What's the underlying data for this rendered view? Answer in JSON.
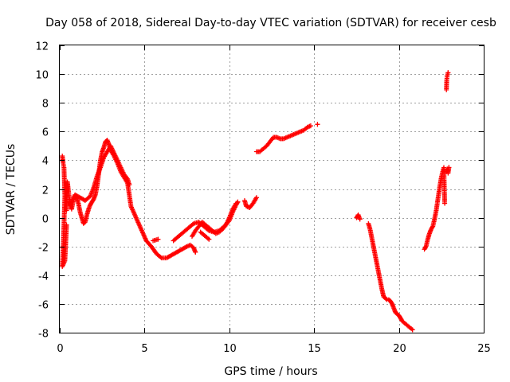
{
  "chart_data": {
    "type": "scatter",
    "title": "Day 058 of 2018, Sidereal Day-to-day VTEC variation (SDTVAR) for receiver cesb",
    "xlabel": "GPS time / hours",
    "ylabel": "SDTVAR / TECUs",
    "xlim": [
      0,
      25
    ],
    "ylim": [
      -8,
      12
    ],
    "xticks": [
      "0",
      "5",
      "10",
      "15",
      "20",
      "25"
    ],
    "yticks": [
      "-8",
      "-6",
      "-4",
      "-2",
      "0",
      "2",
      "4",
      "6",
      "8",
      "10",
      "12"
    ],
    "grid": true,
    "marker": "plus",
    "color": "#ff0000",
    "series": [
      {
        "name": "SDTVAR",
        "segments": [
          [
            [
              0.15,
              4.3
            ],
            [
              0.2,
              3.8
            ],
            [
              0.25,
              3.5
            ],
            [
              0.3,
              1.5
            ],
            [
              0.25,
              -0.5
            ],
            [
              0.2,
              -2.0
            ],
            [
              0.15,
              -3.4
            ],
            [
              0.3,
              -3.0
            ],
            [
              0.35,
              -1.8
            ],
            [
              0.4,
              -0.5
            ]
          ],
          [
            [
              0.4,
              0.5
            ],
            [
              0.45,
              2.5
            ],
            [
              0.5,
              2.0
            ],
            [
              0.6,
              1.0
            ],
            [
              0.7,
              0.6
            ],
            [
              0.8,
              1.2
            ],
            [
              0.9,
              1.5
            ],
            [
              1.0,
              1.4
            ],
            [
              1.1,
              1.0
            ],
            [
              1.2,
              0.4
            ],
            [
              1.3,
              0.0
            ],
            [
              1.4,
              -0.4
            ],
            [
              1.5,
              -0.3
            ],
            [
              1.6,
              0.2
            ],
            [
              1.7,
              0.6
            ],
            [
              1.8,
              0.9
            ],
            [
              1.9,
              1.1
            ],
            [
              2.0,
              1.3
            ],
            [
              2.1,
              1.6
            ],
            [
              2.2,
              2.2
            ],
            [
              2.3,
              3.1
            ],
            [
              2.4,
              4.0
            ],
            [
              2.5,
              4.6
            ],
            [
              2.6,
              4.9
            ],
            [
              2.7,
              5.3
            ],
            [
              2.8,
              5.4
            ],
            [
              2.9,
              5.1
            ],
            [
              3.0,
              4.7
            ],
            [
              3.2,
              4.3
            ],
            [
              3.4,
              3.8
            ],
            [
              3.6,
              3.2
            ],
            [
              3.8,
              2.8
            ],
            [
              4.0,
              2.4
            ],
            [
              4.2,
              0.8
            ],
            [
              4.5,
              0.0
            ],
            [
              4.8,
              -0.8
            ],
            [
              5.1,
              -1.6
            ],
            [
              5.4,
              -2.0
            ],
            [
              5.7,
              -2.5
            ],
            [
              6.0,
              -2.8
            ],
            [
              6.3,
              -2.8
            ],
            [
              6.6,
              -2.6
            ],
            [
              6.9,
              -2.4
            ],
            [
              7.2,
              -2.2
            ],
            [
              7.5,
              -2.0
            ],
            [
              7.7,
              -1.9
            ],
            [
              7.9,
              -2.1
            ],
            [
              8.0,
              -2.4
            ]
          ],
          [
            [
              0.6,
              0.9
            ],
            [
              0.9,
              1.6
            ],
            [
              1.2,
              1.4
            ],
            [
              1.5,
              1.2
            ],
            [
              1.8,
              1.5
            ],
            [
              2.0,
              2.1
            ],
            [
              2.2,
              2.9
            ],
            [
              2.4,
              3.5
            ],
            [
              2.6,
              4.2
            ],
            [
              2.8,
              4.6
            ],
            [
              3.0,
              5.0
            ],
            [
              3.2,
              4.5
            ],
            [
              3.4,
              4.0
            ],
            [
              3.6,
              3.5
            ],
            [
              3.8,
              3.0
            ],
            [
              4.0,
              2.7
            ],
            [
              4.1,
              2.3
            ]
          ],
          [
            [
              5.5,
              -1.6
            ],
            [
              5.8,
              -1.5
            ]
          ],
          [
            [
              6.7,
              -1.6
            ],
            [
              7.0,
              -1.3
            ],
            [
              7.3,
              -1.0
            ],
            [
              7.6,
              -0.7
            ],
            [
              7.9,
              -0.4
            ],
            [
              8.2,
              -0.3
            ],
            [
              8.5,
              -0.6
            ],
            [
              8.8,
              -0.9
            ],
            [
              9.1,
              -1.0
            ],
            [
              9.4,
              -0.9
            ],
            [
              9.7,
              -0.6
            ],
            [
              10.0,
              -0.2
            ],
            [
              10.2,
              0.4
            ],
            [
              10.4,
              0.9
            ],
            [
              10.5,
              1.1
            ]
          ],
          [
            [
              7.8,
              -1.3
            ],
            [
              8.0,
              -0.9
            ],
            [
              8.2,
              -0.6
            ],
            [
              8.4,
              -0.3
            ],
            [
              8.6,
              -0.5
            ],
            [
              8.8,
              -0.7
            ],
            [
              9.0,
              -0.9
            ],
            [
              9.2,
              -1.1
            ],
            [
              9.4,
              -1.0
            ],
            [
              9.6,
              -0.8
            ],
            [
              9.8,
              -0.5
            ],
            [
              10.0,
              0.0
            ],
            [
              10.2,
              0.6
            ],
            [
              10.4,
              1.0
            ]
          ],
          [
            [
              8.3,
              -1.0
            ],
            [
              8.6,
              -1.3
            ],
            [
              8.8,
              -1.5
            ]
          ],
          [
            [
              10.9,
              1.2
            ],
            [
              11.0,
              0.8
            ],
            [
              11.2,
              0.7
            ],
            [
              11.4,
              1.0
            ],
            [
              11.6,
              1.4
            ]
          ],
          [
            [
              11.6,
              4.6
            ],
            [
              11.8,
              4.6
            ],
            [
              12.0,
              4.8
            ],
            [
              12.2,
              5.0
            ],
            [
              12.4,
              5.3
            ],
            [
              12.6,
              5.6
            ],
            [
              12.8,
              5.6
            ],
            [
              13.0,
              5.5
            ],
            [
              13.2,
              5.5
            ],
            [
              13.4,
              5.6
            ],
            [
              13.6,
              5.7
            ],
            [
              13.8,
              5.8
            ],
            [
              14.0,
              5.9
            ],
            [
              14.2,
              6.0
            ],
            [
              14.4,
              6.1
            ],
            [
              14.6,
              6.3
            ],
            [
              14.8,
              6.4
            ]
          ],
          [
            [
              15.2,
              6.5
            ]
          ],
          [
            [
              17.5,
              0.0
            ],
            [
              17.6,
              0.2
            ],
            [
              17.7,
              -0.1
            ]
          ],
          [
            [
              18.2,
              -0.4
            ],
            [
              18.3,
              -0.8
            ],
            [
              18.4,
              -1.4
            ],
            [
              18.5,
              -2.0
            ],
            [
              18.6,
              -2.6
            ],
            [
              18.7,
              -3.2
            ],
            [
              18.8,
              -3.8
            ],
            [
              18.9,
              -4.4
            ],
            [
              19.0,
              -5.0
            ],
            [
              19.1,
              -5.5
            ],
            [
              19.2,
              -5.6
            ],
            [
              19.3,
              -5.7
            ],
            [
              19.4,
              -5.7
            ],
            [
              19.5,
              -5.8
            ],
            [
              19.6,
              -6.0
            ],
            [
              19.7,
              -6.3
            ],
            [
              19.8,
              -6.6
            ],
            [
              19.9,
              -6.7
            ],
            [
              20.0,
              -6.8
            ],
            [
              20.1,
              -7.0
            ],
            [
              20.2,
              -7.2
            ],
            [
              20.4,
              -7.4
            ],
            [
              20.6,
              -7.6
            ],
            [
              20.8,
              -7.8
            ]
          ],
          [
            [
              21.5,
              -2.2
            ],
            [
              21.6,
              -2.0
            ],
            [
              21.7,
              -1.5
            ],
            [
              21.8,
              -1.1
            ],
            [
              21.9,
              -0.8
            ],
            [
              22.0,
              -0.6
            ],
            [
              22.1,
              -0.1
            ],
            [
              22.2,
              0.5
            ],
            [
              22.3,
              1.3
            ],
            [
              22.4,
              2.1
            ],
            [
              22.5,
              2.8
            ],
            [
              22.6,
              3.3
            ],
            [
              22.65,
              3.5
            ],
            [
              22.7,
              1.0
            ]
          ],
          [
            [
              22.8,
              3.2
            ],
            [
              22.85,
              3.4
            ],
            [
              22.9,
              3.1
            ],
            [
              22.95,
              3.5
            ]
          ],
          [
            [
              22.8,
              8.9
            ],
            [
              22.82,
              9.6
            ],
            [
              22.85,
              9.9
            ],
            [
              22.9,
              10.1
            ]
          ]
        ]
      }
    ]
  }
}
